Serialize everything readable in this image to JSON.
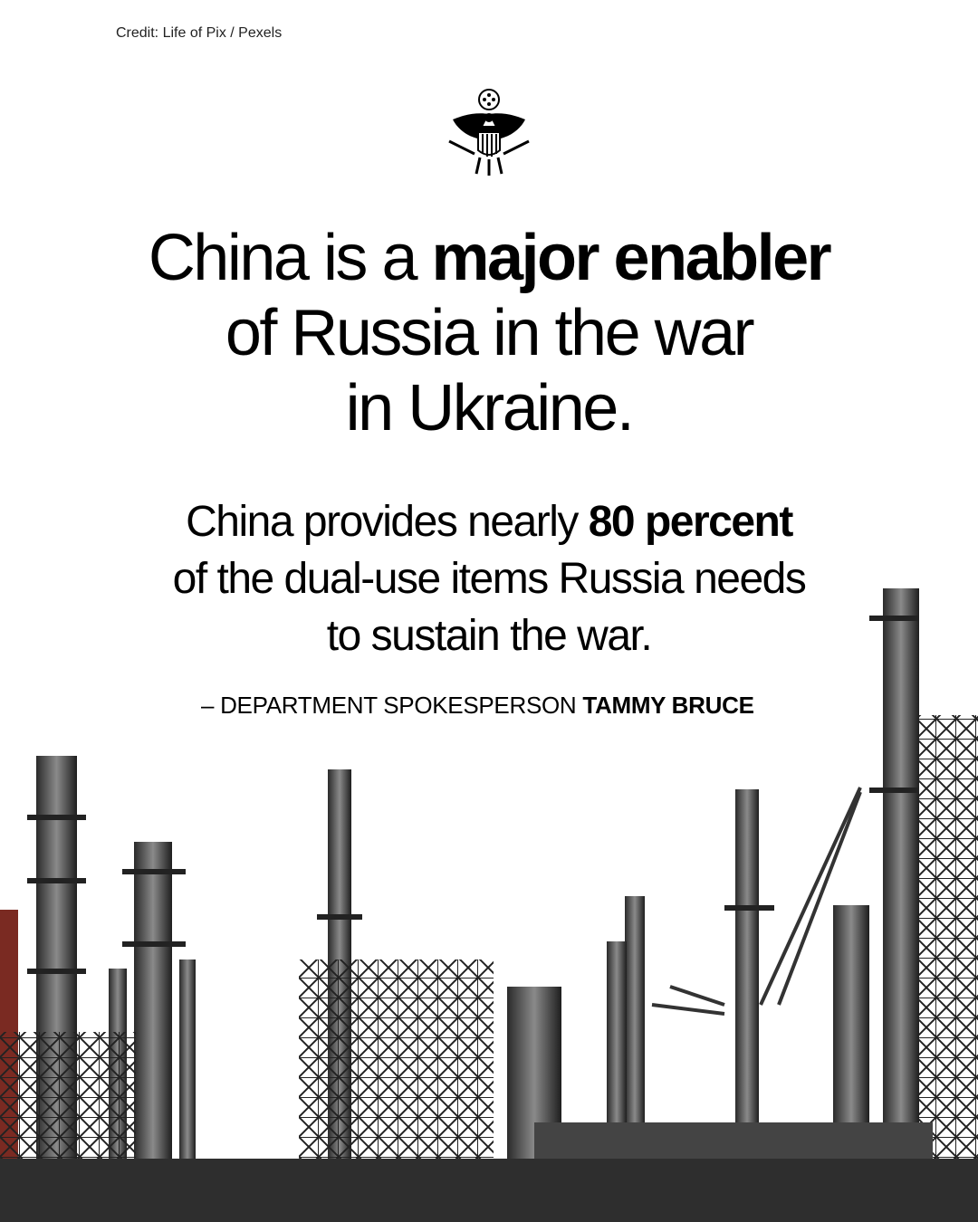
{
  "credit": "Credit: Life of Pix / Pexels",
  "seal": {
    "icon": "great-seal-eagle-icon"
  },
  "headline": {
    "part1": "China is a ",
    "bold": "major enabler",
    "part2": " of Russia in the war in Ukraine."
  },
  "subtext": {
    "part1": "China provides nearly ",
    "bold": "80 percent",
    "part2": " of the dual-use items Russia needs to sustain the war."
  },
  "attribution": {
    "prefix": "– DEPARTMENT SPOKESPERSON ",
    "name": "TAMMY BRUCE"
  },
  "image": {
    "subject": "industrial-refinery-photo"
  }
}
